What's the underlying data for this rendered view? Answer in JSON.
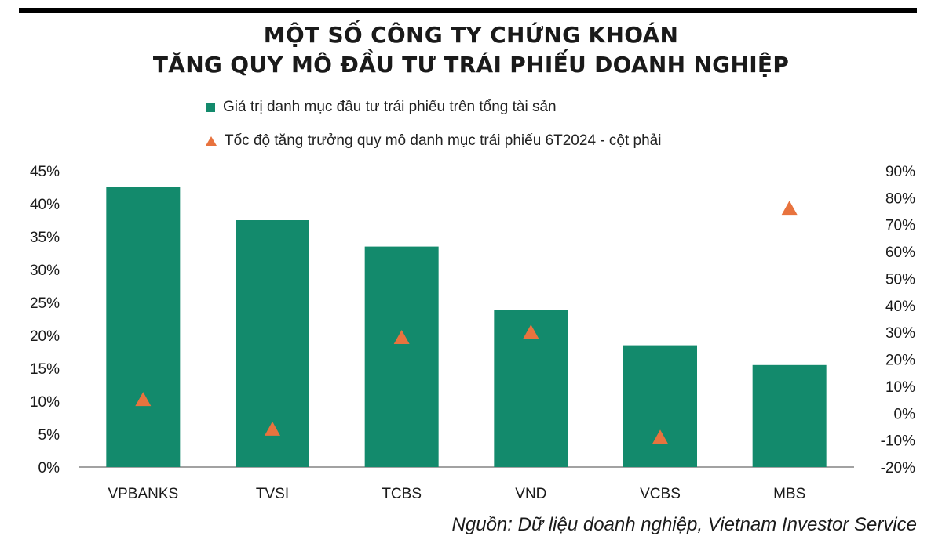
{
  "title_line1": "MỘT SỐ CÔNG TY CHỨNG KHOÁN",
  "title_line2": "TĂNG QUY MÔ ĐẦU TƯ TRÁI PHIẾU DOANH NGHIỆP",
  "source": "Nguồn: Dữ liệu doanh nghiệp, Vietnam Investor Service",
  "colors": {
    "bar": "#138a6c",
    "marker": "#e8733e",
    "axis": "#444444"
  },
  "chart_data": {
    "type": "bar",
    "categories": [
      "VPBANKS",
      "TVSI",
      "TCBS",
      "VND",
      "VCBS",
      "MBS"
    ],
    "series": [
      {
        "name": "Giá trị danh mục đầu tư trái phiếu trên tổng tài sản",
        "type": "bar",
        "axis": "left",
        "values": [
          42.5,
          37.5,
          33.5,
          23.9,
          18.5,
          15.5
        ]
      },
      {
        "name": "Tốc độ tăng trưởng quy mô danh mục trái phiếu 6T2024 - cột phải",
        "type": "scatter",
        "marker": "triangle",
        "axis": "right",
        "values": [
          5,
          -6,
          28,
          30,
          -9,
          76
        ]
      }
    ],
    "y_left": {
      "ylim": [
        0,
        45
      ],
      "ticks": [
        0,
        5,
        10,
        15,
        20,
        25,
        30,
        35,
        40,
        45
      ],
      "tick_labels": [
        "0%",
        "5%",
        "10%",
        "15%",
        "20%",
        "25%",
        "30%",
        "35%",
        "40%",
        "45%"
      ]
    },
    "y_right": {
      "ylim": [
        -20,
        90
      ],
      "ticks": [
        -20,
        -10,
        0,
        10,
        20,
        30,
        40,
        50,
        60,
        70,
        80,
        90
      ],
      "tick_labels": [
        "-20%",
        "-10%",
        "0%",
        "10%",
        "20%",
        "30%",
        "40%",
        "50%",
        "60%",
        "70%",
        "80%",
        "90%"
      ]
    },
    "grid": false,
    "legend_position": "top"
  }
}
